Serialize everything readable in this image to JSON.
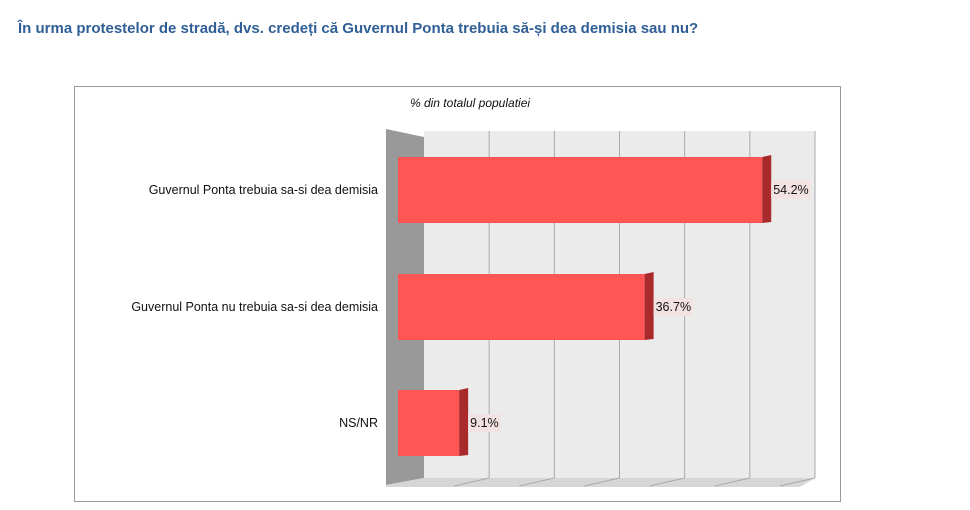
{
  "title": "În urma protestelor de stradă, dvs. credeți că Guvernul Ponta trebuia să-și dea demisia sau nu?",
  "chart_data": {
    "type": "bar",
    "orientation": "horizontal",
    "subtitle": "% din totalul populatiei",
    "categories": [
      "Guvernul Ponta trebuia sa-si dea demisia",
      "Guvernul Ponta nu trebuia sa-si dea demisia",
      "NS/NR"
    ],
    "values": [
      54.2,
      36.7,
      9.1
    ],
    "value_labels": [
      "54.2%",
      "36.7%",
      "9.1%"
    ],
    "xlim": [
      0,
      60
    ],
    "grid": true,
    "bar_color": "#ff5555",
    "bar_side_color": "#a82a2a"
  }
}
